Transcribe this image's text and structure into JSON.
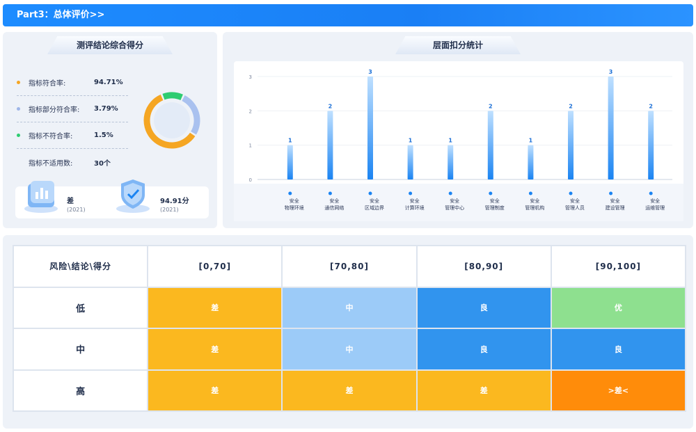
{
  "header": {
    "title": "Part3：总体评价>>"
  },
  "left_panel": {
    "title": "测评结论综合得分",
    "stats": [
      {
        "label": "指标符合率:",
        "value": "94.71%",
        "color": "#f5a623"
      },
      {
        "label": "指标部分符合率:",
        "value": "3.79%",
        "color": "#9fb6e8"
      },
      {
        "label": "指标不符合率:",
        "value": "1.5%",
        "color": "#2ecc71"
      },
      {
        "label": "指标不适用数:",
        "value": "30个",
        "color": ""
      }
    ],
    "donut": {
      "shares": [
        0.9471,
        0.0379,
        0.015
      ],
      "colors": [
        "#f5a623",
        "#a9c1ef",
        "#2ecc71"
      ]
    },
    "scores": [
      {
        "name": "差",
        "year": "(2021)"
      },
      {
        "name": "94.91分",
        "year": "(2021)"
      }
    ]
  },
  "right_panel": {
    "title": "层面扣分统计"
  },
  "chart_data": {
    "type": "bar",
    "categories": [
      [
        "安全",
        "物理环境"
      ],
      [
        "安全",
        "通信网络"
      ],
      [
        "安全",
        "区域边界"
      ],
      [
        "安全",
        "计算环境"
      ],
      [
        "安全",
        "管理中心"
      ],
      [
        "安全",
        "管理制度"
      ],
      [
        "安全",
        "管理机构"
      ],
      [
        "安全",
        "管理人员"
      ],
      [
        "安全",
        "建设管理"
      ],
      [
        "安全",
        "运维管理"
      ]
    ],
    "values": [
      1,
      2,
      3,
      1,
      1,
      2,
      1,
      2,
      3,
      2
    ],
    "yticks": [
      "0",
      "1",
      "2",
      "3"
    ],
    "ylim": [
      0,
      3
    ],
    "grid": true,
    "bar_color_top": "#bfe0ff",
    "bar_color_bottom": "#1b84f2"
  },
  "matrix": {
    "corner": "风险\\结论\\得分",
    "columns": [
      "[0,70]",
      "[70,80]",
      "[80,90]",
      "[90,100]"
    ],
    "rows": [
      {
        "label": "低",
        "cells": [
          {
            "text": "差",
            "color": "#fbb81f"
          },
          {
            "text": "中",
            "color": "#9ccbf8"
          },
          {
            "text": "良",
            "color": "#3194ee"
          },
          {
            "text": "优",
            "color": "#8ee08f"
          }
        ]
      },
      {
        "label": "中",
        "cells": [
          {
            "text": "差",
            "color": "#fbb81f"
          },
          {
            "text": "中",
            "color": "#9ccbf8"
          },
          {
            "text": "良",
            "color": "#3194ee"
          },
          {
            "text": "良",
            "color": "#3194ee"
          }
        ]
      },
      {
        "label": "高",
        "cells": [
          {
            "text": "差",
            "color": "#fbb81f"
          },
          {
            "text": "差",
            "color": "#fbb81f"
          },
          {
            "text": "差",
            "color": "#fbb81f"
          },
          {
            "text": ">差<",
            "color": "#ff8c0a"
          }
        ]
      }
    ]
  }
}
